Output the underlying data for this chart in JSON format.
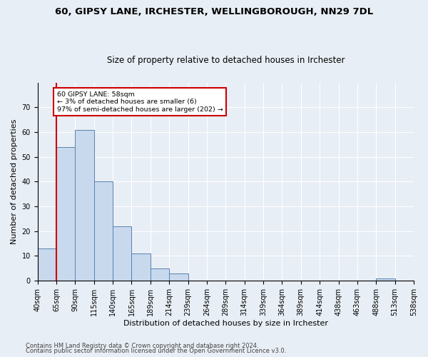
{
  "title": "60, GIPSY LANE, IRCHESTER, WELLINGBOROUGH, NN29 7DL",
  "subtitle": "Size of property relative to detached houses in Irchester",
  "xlabel": "Distribution of detached houses by size in Irchester",
  "ylabel": "Number of detached properties",
  "bar_values": [
    13,
    54,
    61,
    40,
    22,
    11,
    5,
    3,
    0,
    0,
    0,
    0,
    0,
    0,
    0,
    0,
    0,
    0,
    1,
    0
  ],
  "bar_labels": [
    "40sqm",
    "65sqm",
    "90sqm",
    "115sqm",
    "140sqm",
    "165sqm",
    "189sqm",
    "214sqm",
    "239sqm",
    "264sqm",
    "289sqm",
    "314sqm",
    "339sqm",
    "364sqm",
    "389sqm",
    "414sqm",
    "438sqm",
    "463sqm",
    "488sqm",
    "513sqm",
    "538sqm"
  ],
  "bar_color": "#c8d9ed",
  "bar_edge_color": "#5882b0",
  "ylim_max": 80,
  "yticks": [
    0,
    10,
    20,
    30,
    40,
    50,
    60,
    70
  ],
  "property_line_color": "#cc0000",
  "annotation_text": "60 GIPSY LANE: 58sqm\n← 3% of detached houses are smaller (6)\n97% of semi-detached houses are larger (202) →",
  "annotation_box_color": "#ffffff",
  "annotation_box_edge": "#cc0000",
  "footer_line1": "Contains HM Land Registry data © Crown copyright and database right 2024.",
  "footer_line2": "Contains public sector information licensed under the Open Government Licence v3.0.",
  "background_color": "#e8eef5",
  "grid_color": "#ffffff",
  "title_fontsize": 9.5,
  "subtitle_fontsize": 8.5,
  "tick_fontsize": 7,
  "label_fontsize": 8,
  "footer_fontsize": 6,
  "n_bars": 20
}
